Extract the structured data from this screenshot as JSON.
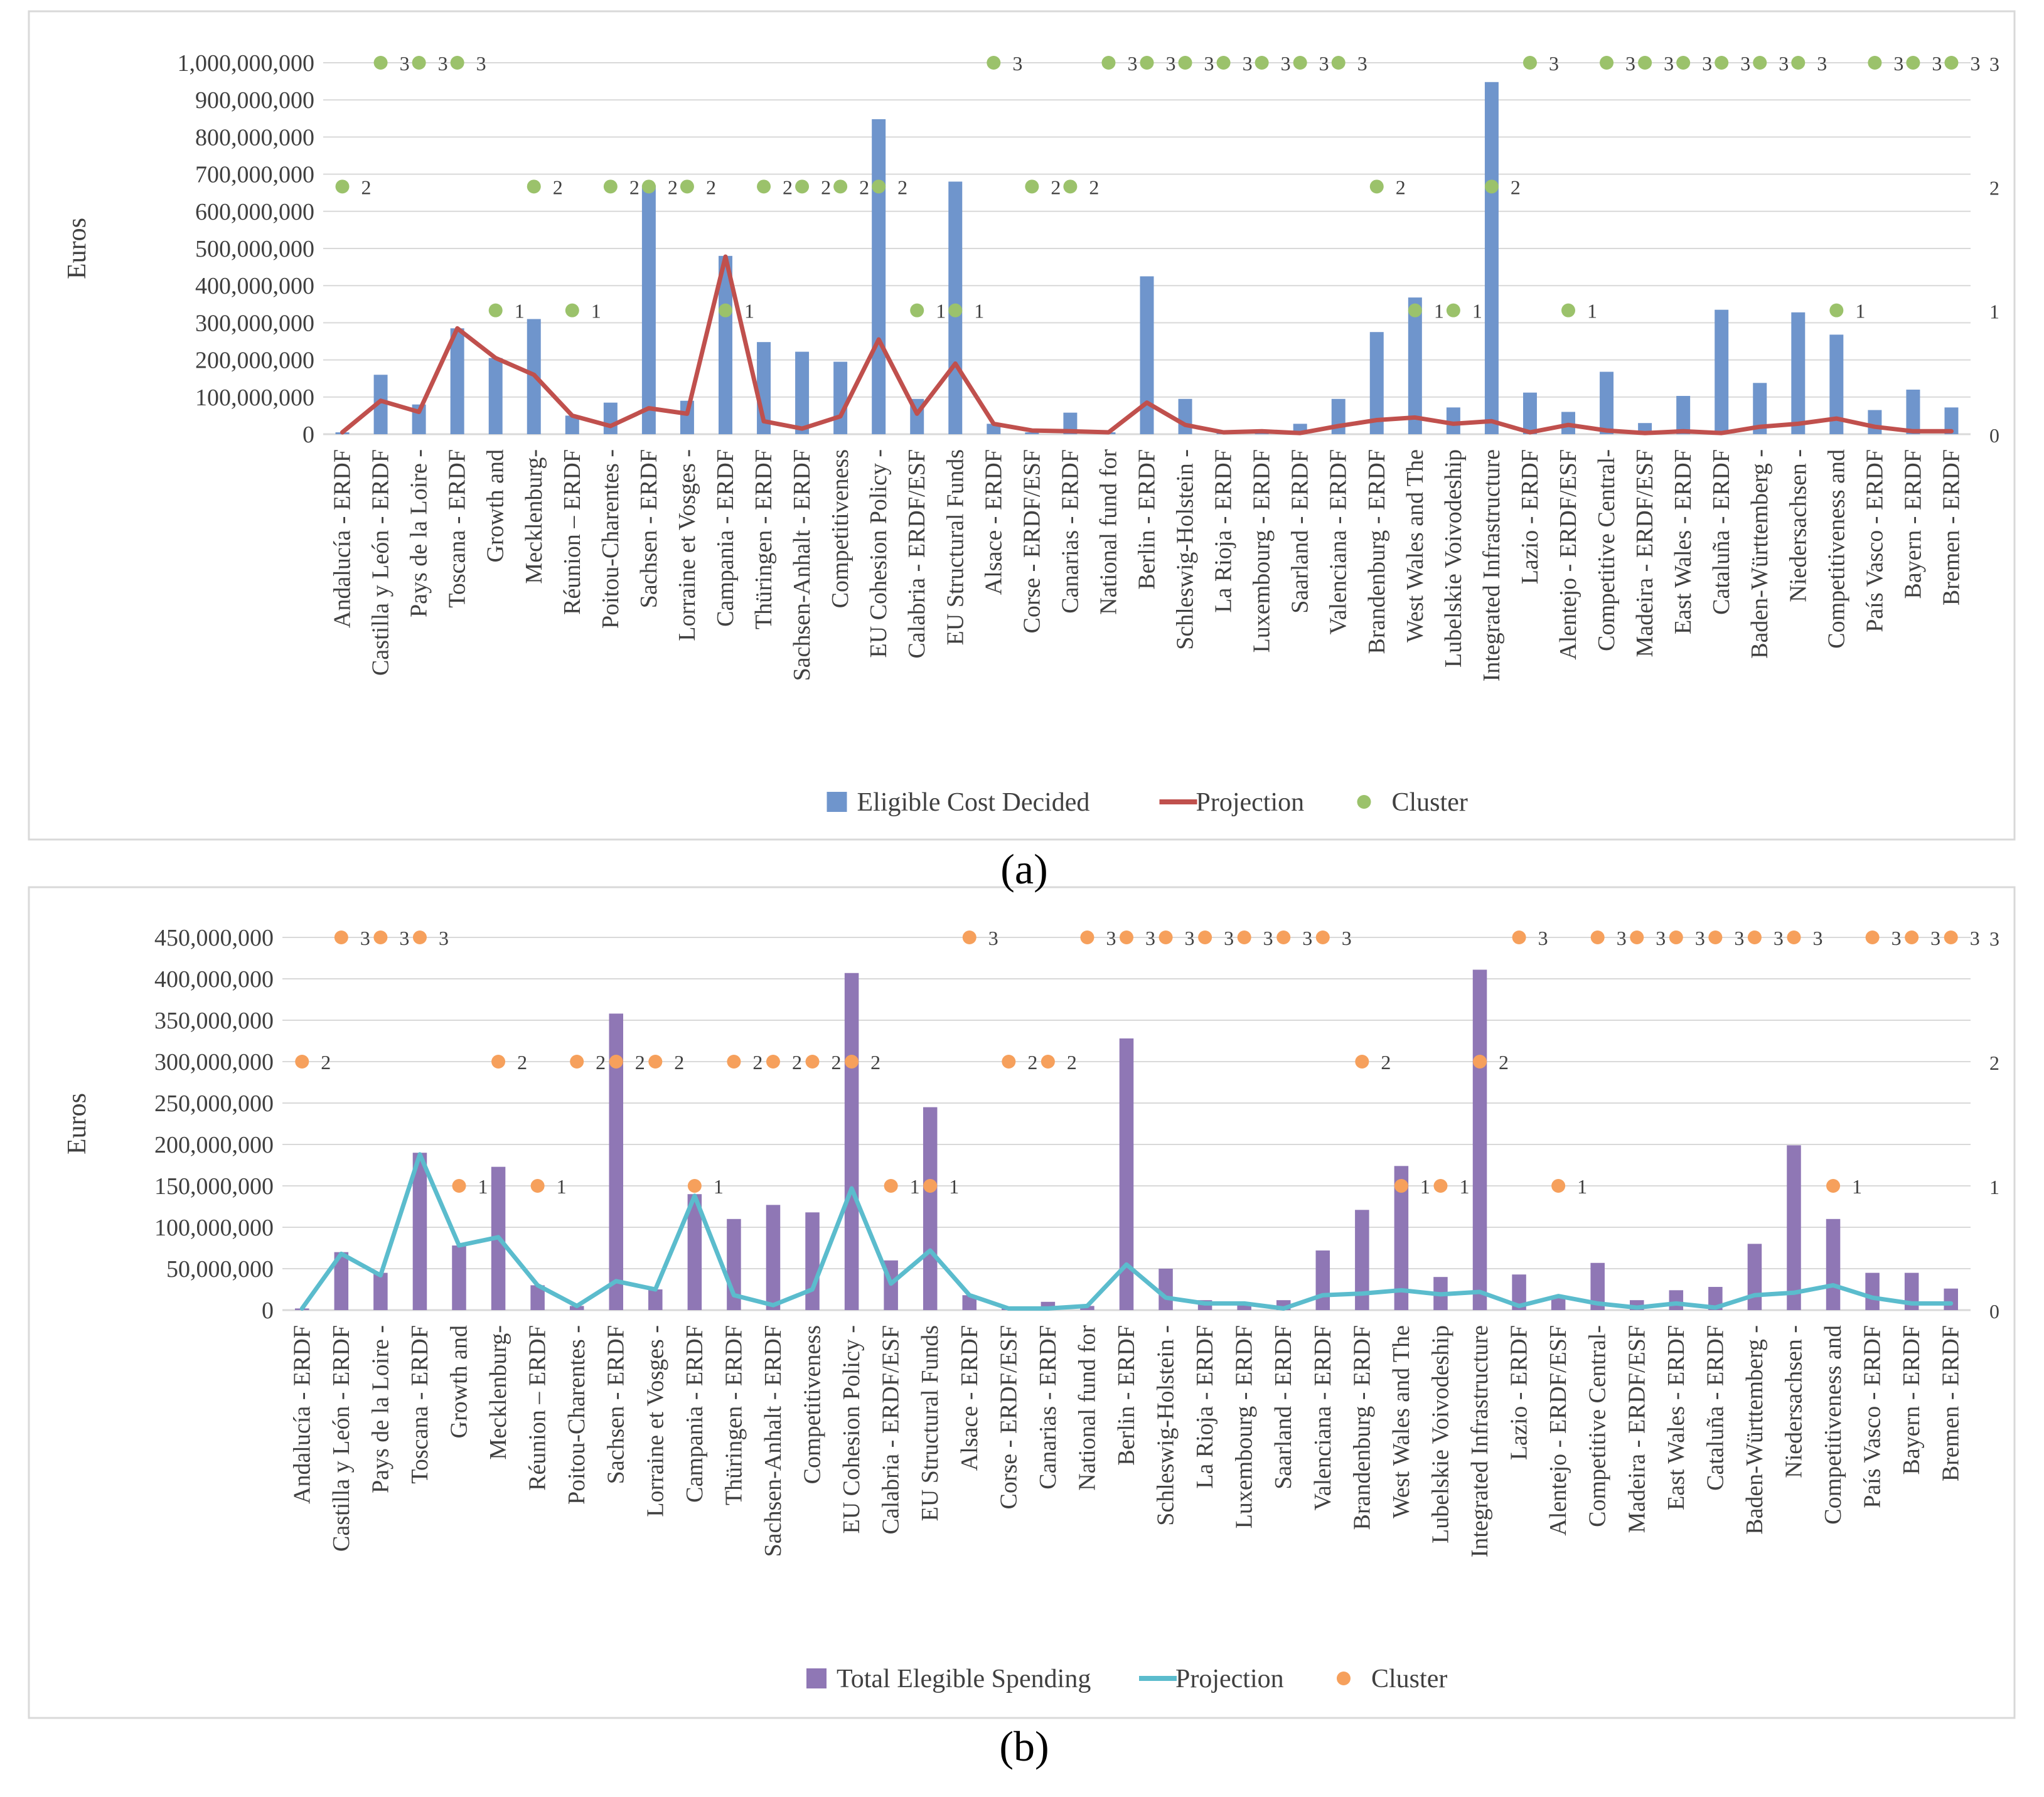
{
  "categories": [
    "Andalucía  - ERDF",
    "Castilla y León  - ERDF",
    "Pays de la Loire -",
    "Toscana - ERDF",
    "Growth and",
    "Mecklenburg-",
    "Réunion – ERDF",
    "Poitou-Charentes -",
    "Sachsen - ERDF",
    "Lorraine et Vosges -",
    "Campania - ERDF",
    "Thüringen - ERDF",
    "Sachsen-Anhalt - ERDF",
    "Competitiveness",
    "EU Cohesion Policy -",
    "Calabria - ERDF/ESF",
    "EU Structural Funds",
    "Alsace - ERDF",
    "Corse - ERDF/ESF",
    "Canarias - ERDF",
    "National fund for",
    "Berlin - ERDF",
    "Schleswig-Holstein -",
    "La Rioja - ERDF",
    "Luxembourg - ERDF",
    "Saarland - ERDF",
    "Valenciana - ERDF",
    "Brandenburg - ERDF",
    "West Wales and The",
    "Lubelskie Voivodeship",
    "Integrated Infrastructure",
    "Lazio - ERDF",
    "Alentejo - ERDF/ESF",
    "Competitive Central-",
    "Madeira - ERDF/ESF",
    "East Wales - ERDF",
    "Cataluña - ERDF",
    "Baden-Württemberg -",
    "Niedersachsen -",
    "Competitiveness and",
    "País Vasco - ERDF",
    "Bayern - ERDF",
    "Bremen - ERDF"
  ],
  "chart_data": [
    {
      "type": "bar",
      "panel_label": "(a)",
      "ylabel": "Euros",
      "ylim": [
        0,
        1000000000
      ],
      "yticks": [
        "0",
        "100,000,000",
        "200,000,000",
        "300,000,000",
        "400,000,000",
        "500,000,000",
        "600,000,000",
        "700,000,000",
        "800,000,000",
        "900,000,000",
        "1,000,000,000"
      ],
      "y2lim": [
        0,
        3
      ],
      "y2ticks": [
        "0",
        "1",
        "2",
        "3"
      ],
      "legend_position": "bottom",
      "gridlines": true,
      "bar_color": "#6f95cc",
      "line_color": "#c0504d",
      "cluster_color": "#9bc26b",
      "series": [
        {
          "name": "Eligible Cost Decided",
          "kind": "bar",
          "values": [
            5000000,
            160000000,
            80000000,
            285000000,
            205000000,
            310000000,
            50000000,
            85000000,
            670000000,
            90000000,
            480000000,
            248000000,
            222000000,
            195000000,
            848000000,
            95000000,
            680000000,
            28000000,
            5000000,
            58000000,
            5000000,
            425000000,
            95000000,
            5000000,
            5000000,
            28000000,
            95000000,
            275000000,
            368000000,
            72000000,
            948000000,
            112000000,
            60000000,
            168000000,
            30000000,
            103000000,
            335000000,
            138000000,
            328000000,
            268000000,
            65000000,
            120000000,
            72000000
          ]
        },
        {
          "name": "Projection",
          "kind": "line",
          "values": [
            5000000,
            90000000,
            60000000,
            285000000,
            205000000,
            160000000,
            50000000,
            22000000,
            70000000,
            55000000,
            478000000,
            35000000,
            15000000,
            48000000,
            255000000,
            55000000,
            190000000,
            28000000,
            10000000,
            8000000,
            5000000,
            85000000,
            25000000,
            5000000,
            8000000,
            3000000,
            22000000,
            38000000,
            45000000,
            28000000,
            35000000,
            5000000,
            25000000,
            10000000,
            3000000,
            8000000,
            3000000,
            20000000,
            28000000,
            42000000,
            20000000,
            8000000,
            8000000
          ]
        },
        {
          "name": "Cluster",
          "kind": "scatter",
          "values": [
            2,
            3,
            3,
            3,
            1,
            2,
            1,
            2,
            2,
            2,
            1,
            2,
            2,
            2,
            2,
            1,
            1,
            3,
            2,
            2,
            3,
            3,
            3,
            3,
            3,
            3,
            3,
            2,
            1,
            1,
            2,
            3,
            1,
            3,
            3,
            3,
            3,
            3,
            3,
            1,
            3,
            3,
            3
          ]
        }
      ]
    },
    {
      "type": "bar",
      "panel_label": "(b)",
      "ylabel": "Euros",
      "ylim": [
        0,
        450000000
      ],
      "yticks": [
        "0",
        "50,000,000",
        "100,000,000",
        "150,000,000",
        "200,000,000",
        "250,000,000",
        "300,000,000",
        "350,000,000",
        "400,000,000",
        "450,000,000"
      ],
      "y2lim": [
        0,
        3
      ],
      "y2ticks": [
        "0",
        "1",
        "2",
        "3"
      ],
      "legend_position": "bottom",
      "gridlines": true,
      "bar_color": "#8f77b5",
      "line_color": "#5bbccd",
      "cluster_color": "#f6a05c",
      "series": [
        {
          "name": "Total Elegible Spending",
          "kind": "bar",
          "values": [
            2000000,
            70000000,
            45000000,
            190000000,
            78000000,
            173000000,
            30000000,
            5000000,
            358000000,
            25000000,
            140000000,
            110000000,
            127000000,
            118000000,
            407000000,
            60000000,
            245000000,
            18000000,
            2000000,
            10000000,
            5000000,
            328000000,
            50000000,
            12000000,
            8000000,
            12000000,
            72000000,
            121000000,
            174000000,
            40000000,
            411000000,
            43000000,
            16000000,
            57000000,
            12000000,
            24000000,
            28000000,
            80000000,
            199000000,
            110000000,
            45000000,
            45000000,
            26000000
          ]
        },
        {
          "name": "Projection",
          "kind": "line",
          "values": [
            2000000,
            68000000,
            42000000,
            188000000,
            78000000,
            88000000,
            30000000,
            5000000,
            35000000,
            25000000,
            138000000,
            18000000,
            6000000,
            25000000,
            147000000,
            32000000,
            72000000,
            18000000,
            2000000,
            2000000,
            5000000,
            55000000,
            15000000,
            8000000,
            8000000,
            2000000,
            18000000,
            20000000,
            24000000,
            19000000,
            22000000,
            5000000,
            17000000,
            8000000,
            3000000,
            8000000,
            3000000,
            18000000,
            21000000,
            30000000,
            15000000,
            8000000,
            8000000
          ]
        },
        {
          "name": "Cluster",
          "kind": "scatter",
          "values": [
            2,
            3,
            3,
            3,
            1,
            2,
            1,
            2,
            2,
            2,
            1,
            2,
            2,
            2,
            2,
            1,
            1,
            3,
            2,
            2,
            3,
            3,
            3,
            3,
            3,
            3,
            3,
            2,
            1,
            1,
            2,
            3,
            1,
            3,
            3,
            3,
            3,
            3,
            3,
            1,
            3,
            3,
            3
          ]
        }
      ]
    }
  ]
}
